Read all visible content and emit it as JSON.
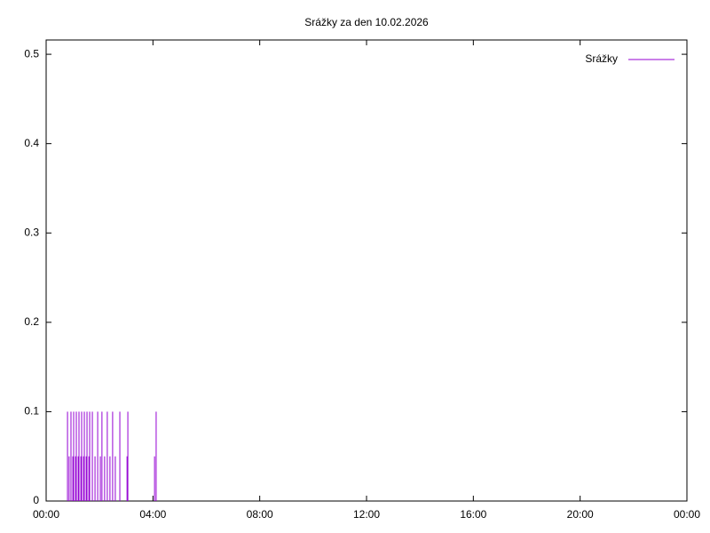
{
  "chart_data": {
    "type": "impulses",
    "title": "Srážky za den 10.02.2026",
    "series": [
      {
        "name": "Srážky",
        "color": "#9400d3",
        "x": [
          0.8,
          0.86,
          0.93,
          1.0,
          1.03,
          1.1,
          1.13,
          1.2,
          1.23,
          1.3,
          1.33,
          1.4,
          1.43,
          1.5,
          1.53,
          1.6,
          1.63,
          1.73,
          1.83,
          1.93,
          2.03,
          2.09,
          2.19,
          2.29,
          2.39,
          2.49,
          2.59,
          2.76,
          3.03,
          3.06,
          4.06,
          4.12
        ],
        "values": [
          0.1,
          0.05,
          0.1,
          0.05,
          0.1,
          0.05,
          0.1,
          0.05,
          0.1,
          0.05,
          0.1,
          0.05,
          0.1,
          0.05,
          0.1,
          0.05,
          0.1,
          0.1,
          0.05,
          0.1,
          0.05,
          0.1,
          0.05,
          0.1,
          0.05,
          0.1,
          0.05,
          0.1,
          0.05,
          0.1,
          0.05,
          0.1
        ]
      }
    ],
    "xlim": [
      0,
      24
    ],
    "xticks": [
      {
        "value": 0,
        "label": "00:00"
      },
      {
        "value": 4,
        "label": "04:00"
      },
      {
        "value": 8,
        "label": "08:00"
      },
      {
        "value": 12,
        "label": "12:00"
      },
      {
        "value": 16,
        "label": "16:00"
      },
      {
        "value": 20,
        "label": "20:00"
      },
      {
        "value": 24,
        "label": "00:00"
      }
    ],
    "ylim": [
      0,
      0.516
    ],
    "yticks": [
      0,
      0.1,
      0.2,
      0.3,
      0.4,
      0.5
    ],
    "legend": "top-right"
  }
}
